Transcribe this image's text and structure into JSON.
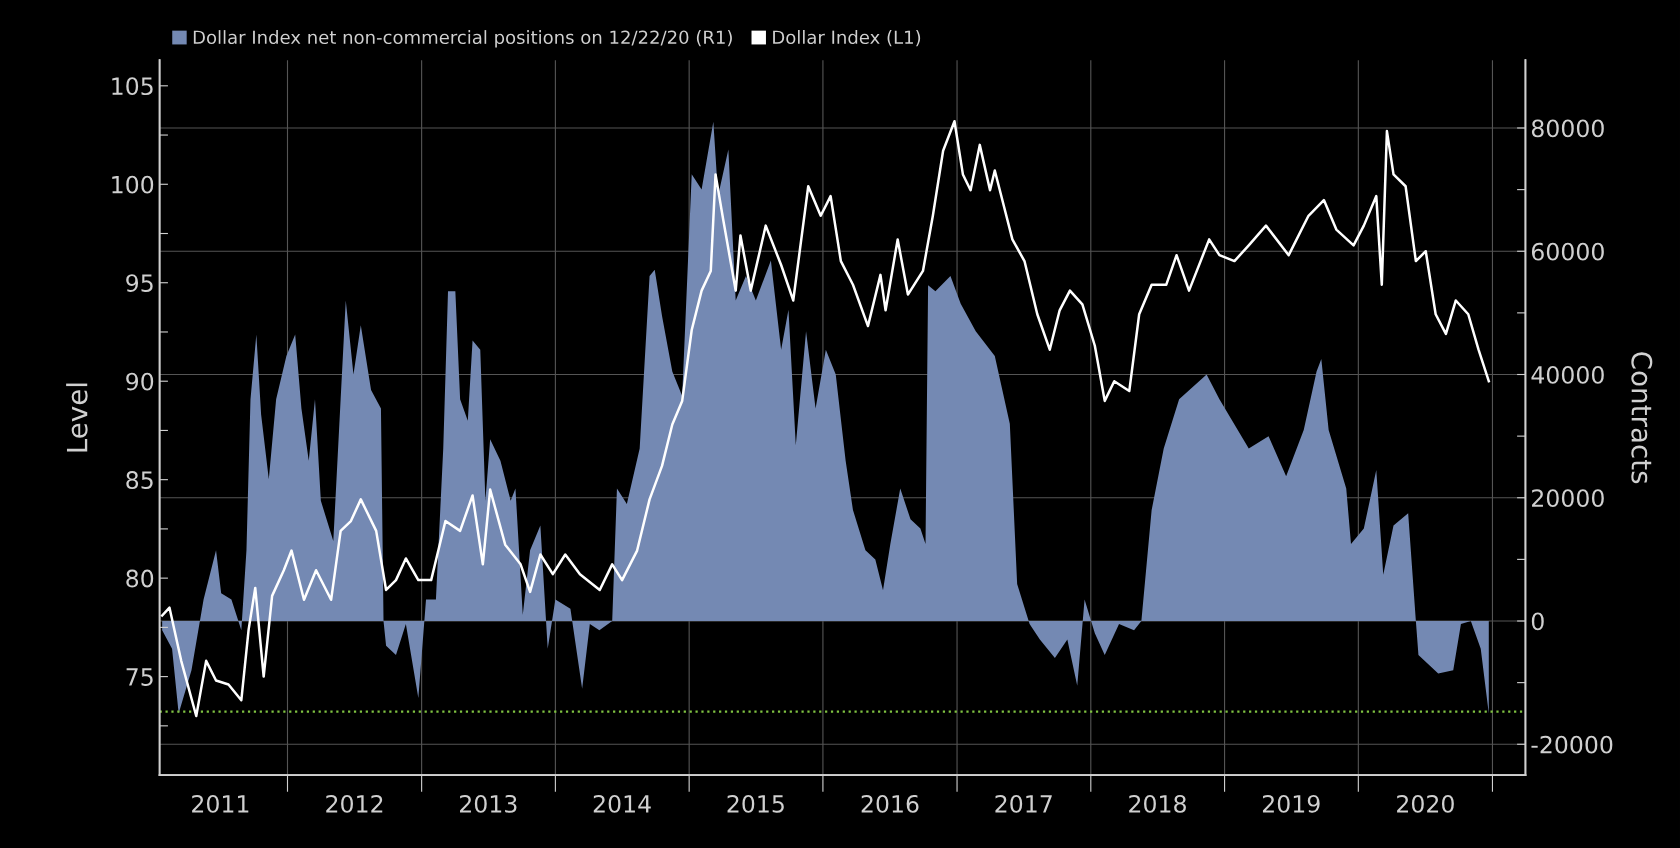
{
  "chart_data": {
    "type": "area",
    "ylabel": "Level",
    "y2label": "Contracts",
    "xlim": [
      "2011-01-17",
      "2021-04-01"
    ],
    "xticks": [
      {
        "value": "2011-07-02",
        "label": "2011"
      },
      {
        "value": "2012-01-01",
        "label": null
      },
      {
        "value": "2012-07-02",
        "label": "2012"
      },
      {
        "value": "2013-01-01",
        "label": null
      },
      {
        "value": "2013-07-02",
        "label": "2013"
      },
      {
        "value": "2014-01-01",
        "label": null
      },
      {
        "value": "2014-07-02",
        "label": "2014"
      },
      {
        "value": "2015-01-01",
        "label": null
      },
      {
        "value": "2015-07-02",
        "label": "2015"
      },
      {
        "value": "2016-01-01",
        "label": null
      },
      {
        "value": "2016-07-02",
        "label": "2016"
      },
      {
        "value": "2017-01-01",
        "label": null
      },
      {
        "value": "2017-07-02",
        "label": "2017"
      },
      {
        "value": "2018-01-01",
        "label": null
      },
      {
        "value": "2018-07-02",
        "label": "2018"
      },
      {
        "value": "2019-01-01",
        "label": null
      },
      {
        "value": "2019-07-02",
        "label": "2019"
      },
      {
        "value": "2020-01-01",
        "label": null
      },
      {
        "value": "2020-07-02",
        "label": "2020"
      },
      {
        "value": "2021-01-01",
        "label": null
      }
    ],
    "ylim": [
      70,
      106.3
    ],
    "yticks": [
      {
        "value": 72.5,
        "label": null
      },
      75,
      {
        "value": 77.5,
        "label": null
      },
      80,
      {
        "value": 82.5,
        "label": null
      },
      85,
      {
        "value": 87.5,
        "label": null
      },
      90,
      {
        "value": 92.5,
        "label": null
      },
      95,
      {
        "value": 97.5,
        "label": null
      },
      100,
      {
        "value": 102.5,
        "label": null
      },
      105
    ],
    "y2lim": [
      -25000,
      91000
    ],
    "y2ticks": [
      -20000,
      {
        "value": -10000,
        "label": null
      },
      0,
      {
        "value": 10000,
        "label": null
      },
      20000,
      {
        "value": 30000,
        "label": null
      },
      40000,
      {
        "value": 50000,
        "label": null
      },
      60000,
      {
        "value": 70000,
        "label": null
      },
      80000
    ],
    "grid": true,
    "legend": "top left",
    "ref_lines": [
      {
        "axis": "y2",
        "value": -14700,
        "color": "#7fc241",
        "line_style": "dotted"
      }
    ],
    "series": [
      {
        "name": "Dollar Index net non-commercial positions on 12/22/20 (R1)",
        "axis": "y2",
        "color": "#7489b3",
        "x": [
          "2011-01-24",
          "2011-02-20",
          "2011-03-10",
          "2011-04-14",
          "2011-05-17",
          "2011-06-20",
          "2011-07-04",
          "2011-08-01",
          "2011-08-28",
          "2011-09-11",
          "2011-09-22",
          "2011-10-08",
          "2011-10-21",
          "2011-11-11",
          "2011-12-01",
          "2011-12-29",
          "2012-01-22",
          "2012-02-08",
          "2012-02-28",
          "2012-03-16",
          "2012-04-01",
          "2012-05-05",
          "2012-05-25",
          "2012-06-08",
          "2012-06-29",
          "2012-07-19",
          "2012-08-16",
          "2012-09-12",
          "2012-09-19",
          "2012-09-26",
          "2012-10-23",
          "2012-11-19",
          "2012-12-23",
          "2013-01-13",
          "2013-02-09",
          "2013-03-01",
          "2013-03-14",
          "2013-04-03",
          "2013-04-16",
          "2013-05-07",
          "2013-05-20",
          "2013-06-10",
          "2013-06-24",
          "2013-07-07",
          "2013-08-04",
          "2013-09-01",
          "2013-09-14",
          "2013-10-04",
          "2013-10-24",
          "2013-11-21",
          "2013-12-11",
          "2014-01-01",
          "2014-02-11",
          "2014-03-15",
          "2014-04-05",
          "2014-05-01",
          "2014-06-05",
          "2014-06-18",
          "2014-07-15",
          "2014-08-19",
          "2014-09-15",
          "2014-09-29",
          "2014-10-19",
          "2014-11-16",
          "2014-12-13",
          "2015-01-08",
          "2015-02-04",
          "2015-03-08",
          "2015-03-21",
          "2015-04-18",
          "2015-05-08",
          "2015-06-05",
          "2015-07-02",
          "2015-08-12",
          "2015-09-09",
          "2015-09-29",
          "2015-10-19",
          "2015-11-16",
          "2015-12-12",
          "2016-01-09",
          "2016-02-05",
          "2016-03-03",
          "2016-03-23",
          "2016-04-26",
          "2016-05-23",
          "2016-06-13",
          "2016-07-03",
          "2016-07-30",
          "2016-08-27",
          "2016-09-23",
          "2016-10-07",
          "2016-10-14",
          "2016-11-03",
          "2016-12-14",
          "2017-01-11",
          "2017-02-21",
          "2017-04-14",
          "2017-05-25",
          "2017-06-14",
          "2017-07-18",
          "2017-08-15",
          "2017-09-25",
          "2017-10-29",
          "2017-11-25",
          "2017-12-15",
          "2018-01-12",
          "2018-02-08",
          "2018-03-19",
          "2018-04-29",
          "2018-05-19",
          "2018-06-16",
          "2018-07-19",
          "2018-08-30",
          "2018-11-13",
          "2018-12-18",
          "2019-03-08",
          "2019-05-01",
          "2019-06-18",
          "2019-08-05",
          "2019-09-09",
          "2019-09-22",
          "2019-10-12",
          "2019-11-29",
          "2019-12-12",
          "2020-01-16",
          "2020-02-19",
          "2020-03-09",
          "2020-04-06",
          "2020-05-16",
          "2020-06-06",
          "2020-06-13",
          "2020-08-06",
          "2020-09-16",
          "2020-10-07",
          "2020-11-03",
          "2020-11-30",
          "2020-12-22"
        ],
        "values": [
          -1500,
          -4500,
          -15000,
          -8000,
          3500,
          11500,
          4500,
          3500,
          -1500,
          11500,
          36000,
          46500,
          33500,
          23000,
          36000,
          43000,
          46500,
          34500,
          26000,
          36000,
          19500,
          13000,
          36000,
          52000,
          40000,
          48000,
          37500,
          34500,
          0,
          -4000,
          -5500,
          -500,
          -12500,
          3500,
          3500,
          28000,
          53500,
          53500,
          36000,
          32500,
          45500,
          44000,
          19500,
          29500,
          26000,
          19500,
          21500,
          1000,
          11500,
          15500,
          -4500,
          3500,
          2000,
          -11000,
          -500,
          -1500,
          0,
          21500,
          19000,
          28000,
          56000,
          57000,
          49500,
          40500,
          36500,
          72500,
          70000,
          81000,
          69000,
          76500,
          52000,
          56000,
          52000,
          58500,
          44000,
          50500,
          28500,
          47000,
          34500,
          44000,
          40000,
          26000,
          18000,
          11500,
          10000,
          5000,
          12500,
          21500,
          16500,
          15000,
          12500,
          54500,
          53500,
          56000,
          51500,
          47000,
          43000,
          32000,
          6000,
          -500,
          -3000,
          -6000,
          -3000,
          -10500,
          3500,
          -2000,
          -5500,
          -500,
          -1500,
          0,
          18000,
          28000,
          36000,
          40000,
          36000,
          28000,
          30000,
          23500,
          31000,
          40500,
          42500,
          31000,
          21500,
          12500,
          15000,
          24500,
          7500,
          15500,
          17500,
          0,
          -5500,
          -8500,
          -8000,
          -500,
          0,
          -4500,
          -15000
        ]
      },
      {
        "name": "Dollar Index (L1)",
        "type": "line",
        "axis": "y",
        "color": "#ffffff",
        "x": [
          "2011-01-24",
          "2011-02-13",
          "2011-03-17",
          "2011-04-27",
          "2011-05-24",
          "2011-06-20",
          "2011-07-24",
          "2011-08-28",
          "2011-09-17",
          "2011-10-05",
          "2011-10-28",
          "2011-11-20",
          "2011-12-22",
          "2012-01-12",
          "2012-02-15",
          "2012-03-19",
          "2012-04-29",
          "2012-05-25",
          "2012-06-22",
          "2012-07-19",
          "2012-08-30",
          "2012-09-26",
          "2012-10-23",
          "2012-11-19",
          "2012-12-23",
          "2013-01-27",
          "2013-03-07",
          "2013-04-16",
          "2013-05-20",
          "2013-06-17",
          "2013-07-07",
          "2013-08-17",
          "2013-09-28",
          "2013-10-24",
          "2013-11-21",
          "2013-12-25",
          "2014-01-28",
          "2014-03-09",
          "2014-05-02",
          "2014-06-05",
          "2014-07-02",
          "2014-08-12",
          "2014-09-15",
          "2014-10-19",
          "2014-11-16",
          "2014-12-13",
          "2015-01-08",
          "2015-02-04",
          "2015-03-01",
          "2015-03-14",
          "2015-04-04",
          "2015-05-08",
          "2015-05-21",
          "2015-06-18",
          "2015-07-29",
          "2015-09-09",
          "2015-10-12",
          "2015-11-22",
          "2015-12-26",
          "2016-01-22",
          "2016-02-19",
          "2016-03-23",
          "2016-05-03",
          "2016-06-06",
          "2016-06-20",
          "2016-07-23",
          "2016-08-20",
          "2016-09-30",
          "2016-10-27",
          "2016-11-24",
          "2016-12-25",
          "2017-01-17",
          "2017-02-07",
          "2017-03-04",
          "2017-04-01",
          "2017-04-14",
          "2017-06-01",
          "2017-07-04",
          "2017-08-08",
          "2017-09-11",
          "2017-10-08",
          "2017-11-05",
          "2017-12-09",
          "2018-01-12",
          "2018-02-08",
          "2018-03-06",
          "2018-04-16",
          "2018-05-13",
          "2018-06-16",
          "2018-07-26",
          "2018-08-23",
          "2018-09-26",
          "2018-11-20",
          "2018-12-18",
          "2019-01-28",
          "2019-03-08",
          "2019-04-24",
          "2019-06-25",
          "2019-08-18",
          "2019-09-29",
          "2019-11-02",
          "2019-12-19",
          "2020-01-16",
          "2020-02-19",
          "2020-03-05",
          "2020-03-19",
          "2020-04-06",
          "2020-05-09",
          "2020-06-06",
          "2020-07-03",
          "2020-07-30",
          "2020-08-27",
          "2020-09-23",
          "2020-10-27",
          "2020-11-24",
          "2020-12-22"
        ],
        "values": [
          78.1,
          78.5,
          75.8,
          73.0,
          75.8,
          74.8,
          74.6,
          73.8,
          77.4,
          79.5,
          75.0,
          79.1,
          80.4,
          81.4,
          78.9,
          80.4,
          78.9,
          82.4,
          82.9,
          84.0,
          82.4,
          79.4,
          79.9,
          81.0,
          79.9,
          79.9,
          82.9,
          82.4,
          84.2,
          80.7,
          84.5,
          81.7,
          80.7,
          79.3,
          81.2,
          80.2,
          81.2,
          80.2,
          79.4,
          80.7,
          79.9,
          81.4,
          84.0,
          85.7,
          87.8,
          89.0,
          92.6,
          94.6,
          95.6,
          100.5,
          98.2,
          94.6,
          97.4,
          94.6,
          97.9,
          95.9,
          94.1,
          99.9,
          98.4,
          99.4,
          96.1,
          94.9,
          92.8,
          95.4,
          93.6,
          97.2,
          94.4,
          95.6,
          98.4,
          101.7,
          103.2,
          100.5,
          99.7,
          102.0,
          99.7,
          100.7,
          97.2,
          96.1,
          93.4,
          91.6,
          93.6,
          94.6,
          93.9,
          91.8,
          89.0,
          90.0,
          89.5,
          93.4,
          94.9,
          94.9,
          96.4,
          94.6,
          97.2,
          96.4,
          96.1,
          96.9,
          97.9,
          96.4,
          98.4,
          99.2,
          97.7,
          96.9,
          97.9,
          99.4,
          94.9,
          102.7,
          100.5,
          99.9,
          96.1,
          96.6,
          93.4,
          92.4,
          94.1,
          93.4,
          91.6,
          90.0
        ]
      }
    ]
  }
}
